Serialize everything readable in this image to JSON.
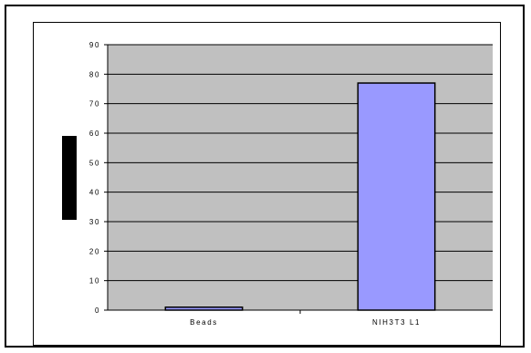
{
  "chart_data": {
    "type": "bar",
    "categories": [
      "Beads",
      "NIH3T3 L1"
    ],
    "values": [
      1,
      77
    ],
    "ylim": [
      0,
      90
    ],
    "yticks": [
      0,
      10,
      20,
      30,
      40,
      50,
      60,
      70,
      80,
      90
    ],
    "grid": true,
    "legend": "none",
    "title": "",
    "xlabel": "",
    "ylabel": "",
    "colors": {
      "plot_background": "#c0c0c0",
      "bar_fill": "#9999ff",
      "bar_stroke": "#000000",
      "gridline": "#000000"
    }
  }
}
